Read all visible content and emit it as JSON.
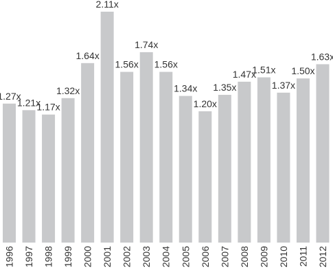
{
  "chart_data": {
    "type": "bar",
    "categories": [
      "1996",
      "1997",
      "1998",
      "1999",
      "2000",
      "2001",
      "2002",
      "2003",
      "2004",
      "2005",
      "2006",
      "2007",
      "2008",
      "2009",
      "2010",
      "2011",
      "2012"
    ],
    "values": [
      1.27,
      1.21,
      1.17,
      1.32,
      1.64,
      2.11,
      1.56,
      1.74,
      1.56,
      1.34,
      1.2,
      1.35,
      1.47,
      1.51,
      1.37,
      1.5,
      1.63
    ],
    "value_labels": [
      "1.27x",
      "1.21x",
      "1.17x",
      "1.32x",
      "1.64x",
      "2.11x",
      "1.56x",
      "1.74x",
      "1.56x",
      "1.34x",
      "1.20x",
      "1.35x",
      "1.47x",
      "1.51x",
      "1.37x",
      "1.50x",
      "1.63x"
    ],
    "color": "#c8c9cb"
  }
}
